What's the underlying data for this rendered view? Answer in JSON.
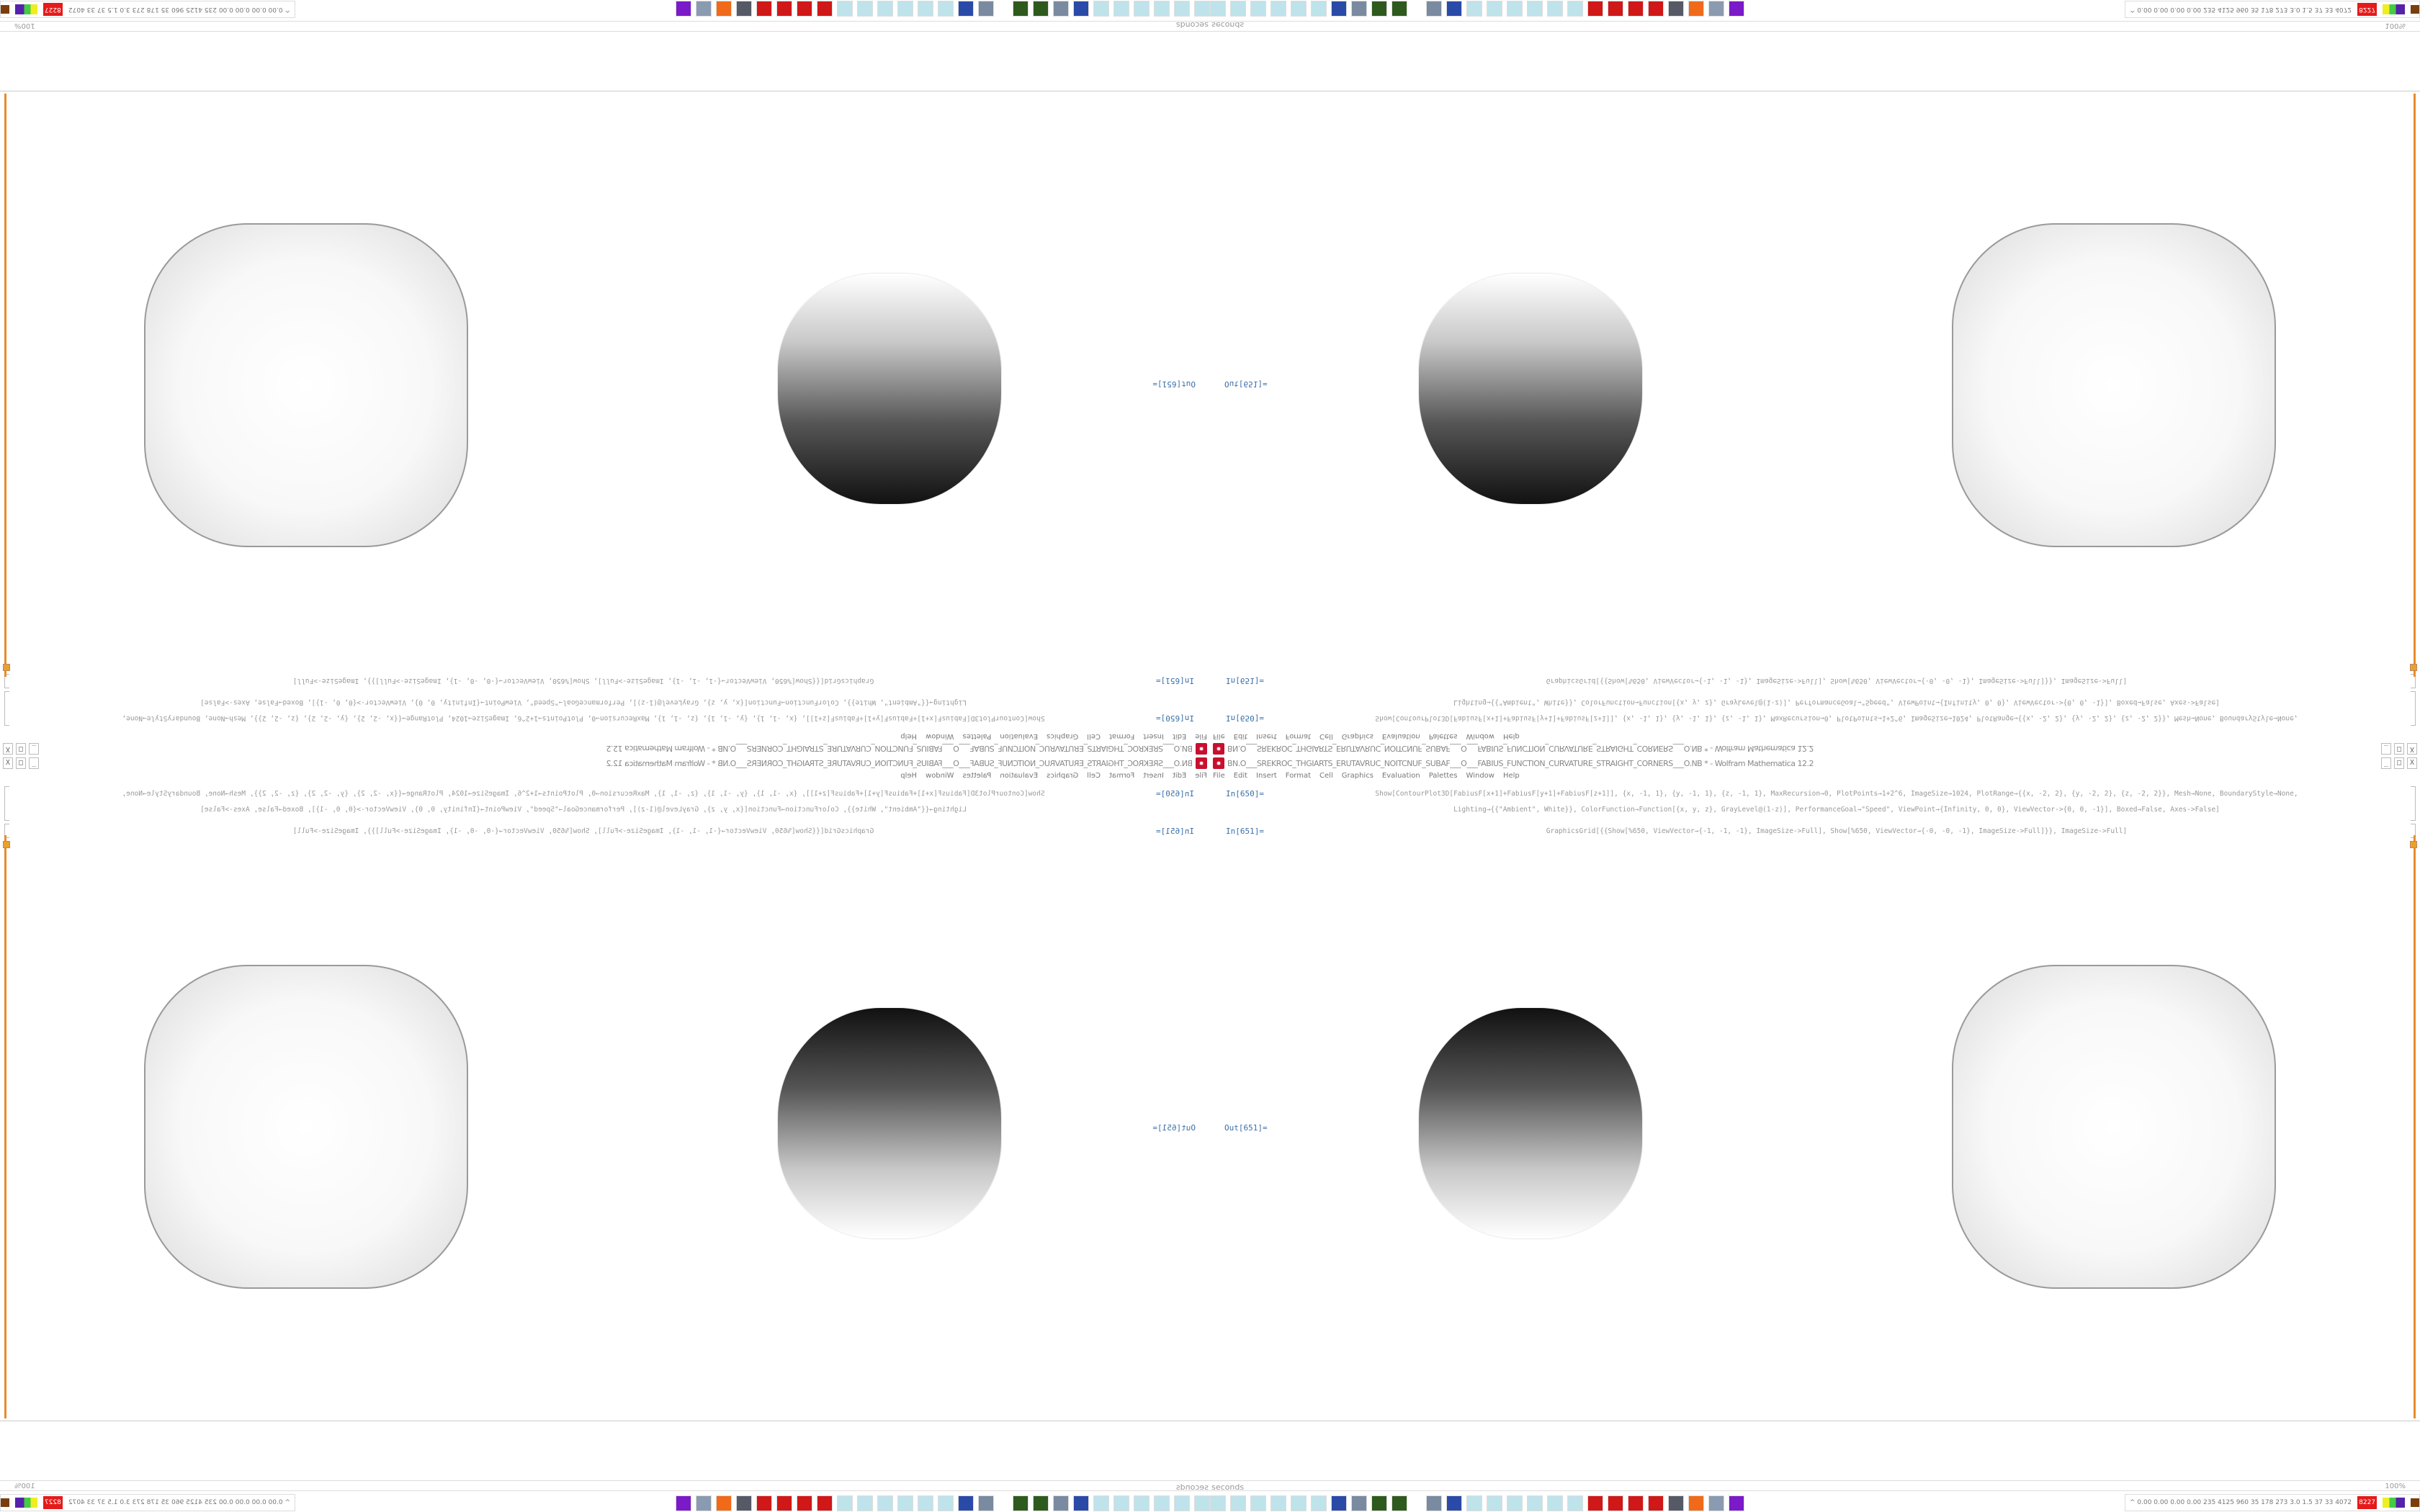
{
  "window": {
    "title": "BN.O___SREKROC_THGIARTS_ERUTAVRUC_NOITCNUF_SUBAF___O___FABIUS_FUNCTION_CURVATURE_STRAIGHT_CORNERS___O.NB * - Wolfram Mathematica 12.2",
    "controls": [
      "_",
      "□",
      "X"
    ]
  },
  "menu": [
    "File",
    "Edit",
    "Insert",
    "Format",
    "Cell",
    "Graphics",
    "Evaluation",
    "Palettes",
    "Window",
    "Help"
  ],
  "cells": [
    {
      "label": "In[650]=",
      "code": [
        "Show[ContourPlot3D[FabiusF[x+1]+FabiusF[y+1]+FabiusF[z+1]], {x, -1, 1}, {y, -1, 1}, {z, -1, 1}, MaxRecursion→0, PlotPoints→1+2^6, ImageSize→1024, PlotRange→{{x, -2, 2}, {y, -2, 2}, {z, -2, 2}}, Mesh→None, BoundaryStyle→None,",
        "Lighting→{{\"Ambient\", White}}, ColorFunction→Function[{x, y, z}, GrayLevel@(1-z)], PerformanceGoal→\"Speed\", ViewPoint→{Infinity, 0, 0}, ViewVector->{0, 0, -1}], Boxed→False, Axes->False]"
      ]
    },
    {
      "label": "In[651]=",
      "code": [
        "GraphicsGrid[{{Show[%650, ViewVector→{-1, -1, -1}, ImageSize->Full], Show[%650, ViewVector→{-0, -0, -1}, ImageSize->Full]}}, ImageSize->Full]"
      ]
    }
  ],
  "output": {
    "label": "Out[651]="
  },
  "status": {
    "time": "Time: 2.35 seconds",
    "zoom": "100%"
  },
  "taskbar": {
    "icons": [
      "notepad",
      "notepad",
      "notepad",
      "notepad",
      "notepad",
      "notepad",
      "floppy",
      "computer",
      "terminal",
      "terminal",
      "computer",
      "floppy",
      "notepad",
      "notepad",
      "notepad",
      "notepad",
      "notepad",
      "notepad",
      "mathematica",
      "mathematica",
      "mathematica",
      "mathematica",
      "network",
      "firefox",
      "server",
      "app-purple"
    ],
    "icon_colors": {
      "notepad": "#bfe3ea",
      "floppy": "#2a4aa8",
      "computer": "#7a8aa0",
      "terminal": "#2e5a1e",
      "mathematica": "#d01818",
      "network": "#555a66",
      "firefox": "#f06a1a",
      "server": "#8a9ab0",
      "app-purple": "#7a1ac8"
    },
    "tray": "^ 0.00 0.00 0.00 0.00 235 4125 960 35 178 273 3.0 1.5 37 33 4072",
    "tray_badge": "8227"
  },
  "colors": {
    "accent": "#e98b2a",
    "label": "#3a6fa8"
  }
}
